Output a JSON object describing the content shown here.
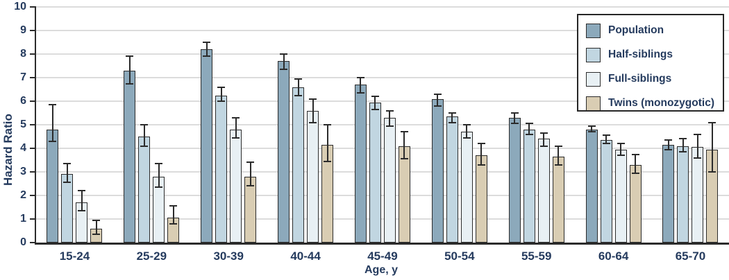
{
  "chart_data": {
    "type": "bar",
    "title": "",
    "xlabel": "Age, y",
    "ylabel": "Hazard Ratio",
    "ylim": [
      0,
      10
    ],
    "yticks": [
      0,
      1,
      2,
      3,
      4,
      5,
      6,
      7,
      8,
      9,
      10
    ],
    "grid": true,
    "error_bars": true,
    "legend_position": "top-right",
    "categories": [
      "15-24",
      "25-29",
      "30-39",
      "40-44",
      "45-49",
      "50-54",
      "55-59",
      "60-64",
      "65-70"
    ],
    "series": [
      {
        "name": "Population",
        "color": "#8CA9BB",
        "values": [
          4.8,
          7.3,
          8.2,
          7.7,
          6.7,
          6.1,
          5.3,
          4.8,
          4.15
        ],
        "ci_low": [
          4.3,
          6.75,
          7.9,
          7.35,
          6.35,
          5.8,
          5.05,
          4.7,
          3.95
        ],
        "ci_high": [
          5.85,
          7.9,
          8.5,
          8.0,
          7.0,
          6.3,
          5.5,
          4.95,
          4.35
        ]
      },
      {
        "name": "Half-siblings",
        "color": "#C1D6E1",
        "values": [
          2.9,
          4.5,
          6.25,
          6.6,
          5.95,
          5.35,
          4.8,
          4.35,
          4.1
        ],
        "ci_low": [
          2.55,
          4.1,
          6.0,
          6.25,
          5.65,
          5.1,
          4.6,
          4.2,
          3.85
        ],
        "ci_high": [
          3.35,
          5.0,
          6.6,
          6.95,
          6.2,
          5.5,
          5.05,
          4.55,
          4.4
        ]
      },
      {
        "name": "Full-siblings",
        "color": "#E8F0F4",
        "values": [
          1.7,
          2.8,
          4.8,
          5.6,
          5.3,
          4.7,
          4.4,
          3.95,
          4.05
        ],
        "ci_low": [
          1.35,
          2.35,
          4.45,
          5.1,
          4.95,
          4.45,
          4.1,
          3.7,
          3.6
        ],
        "ci_high": [
          2.2,
          3.35,
          5.3,
          6.1,
          5.6,
          5.0,
          4.65,
          4.2,
          4.6
        ]
      },
      {
        "name": "Twins (monozygotic)",
        "color": "#D9CDB3",
        "values": [
          0.6,
          1.05,
          2.8,
          4.15,
          4.1,
          3.7,
          3.65,
          3.3,
          3.95
        ],
        "ci_low": [
          0.35,
          0.8,
          2.4,
          3.45,
          3.55,
          3.3,
          3.3,
          2.95,
          3.0
        ],
        "ci_high": [
          0.95,
          1.55,
          3.4,
          5.0,
          4.7,
          4.2,
          4.1,
          3.75,
          5.1
        ]
      }
    ]
  },
  "colors": {
    "axis": "#2b2b2b",
    "gridline": "#dcdcdc",
    "text": "#253b5e",
    "error_bar": "#2b2b2b",
    "background": "#ffffff"
  }
}
